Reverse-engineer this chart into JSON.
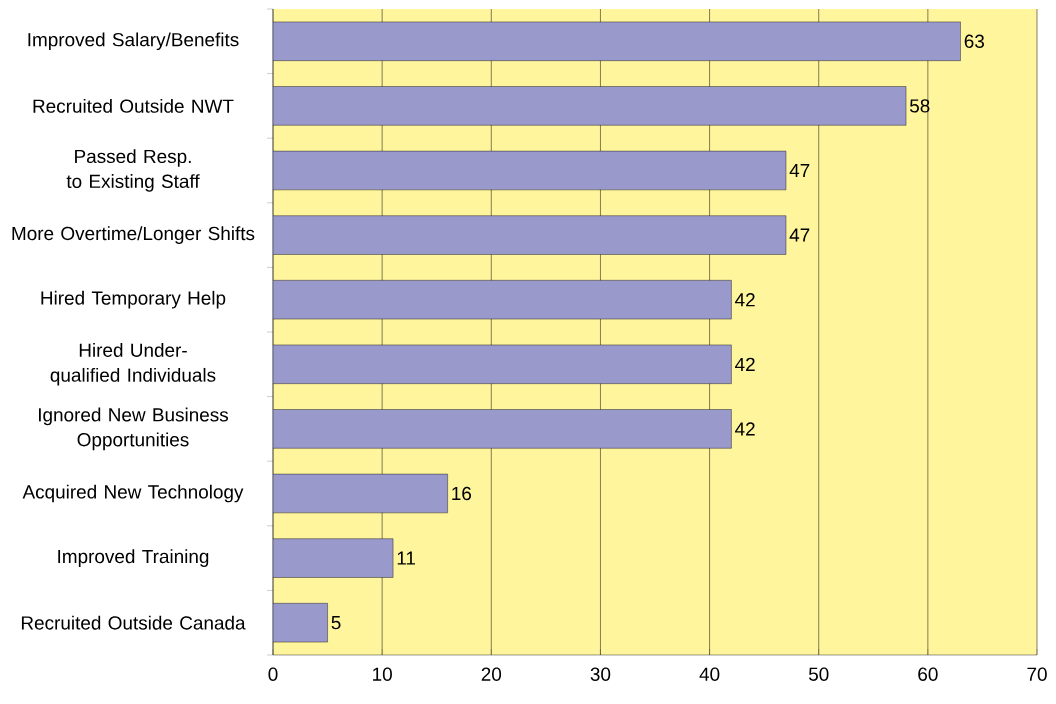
{
  "chart_data": {
    "type": "bar",
    "orientation": "horizontal",
    "categories": [
      "Improved Salary/Benefits",
      "Recruited Outside NWT",
      "Passed Resp. to Existing Staff",
      "More Overtime/Longer Shifts",
      "Hired Temporary Help",
      "Hired Under-qualified Individuals",
      "Ignored New Business Opportunities",
      "Acquired New Technology",
      "Improved Training",
      "Recruited Outside Canada"
    ],
    "values": [
      63,
      58,
      47,
      47,
      42,
      42,
      42,
      16,
      11,
      5
    ],
    "color": "#9999cc",
    "data_labels": true,
    "xlim": [
      0,
      70
    ],
    "xticks": [
      0,
      10,
      20,
      30,
      40,
      50,
      60,
      70
    ],
    "grid": "x"
  }
}
